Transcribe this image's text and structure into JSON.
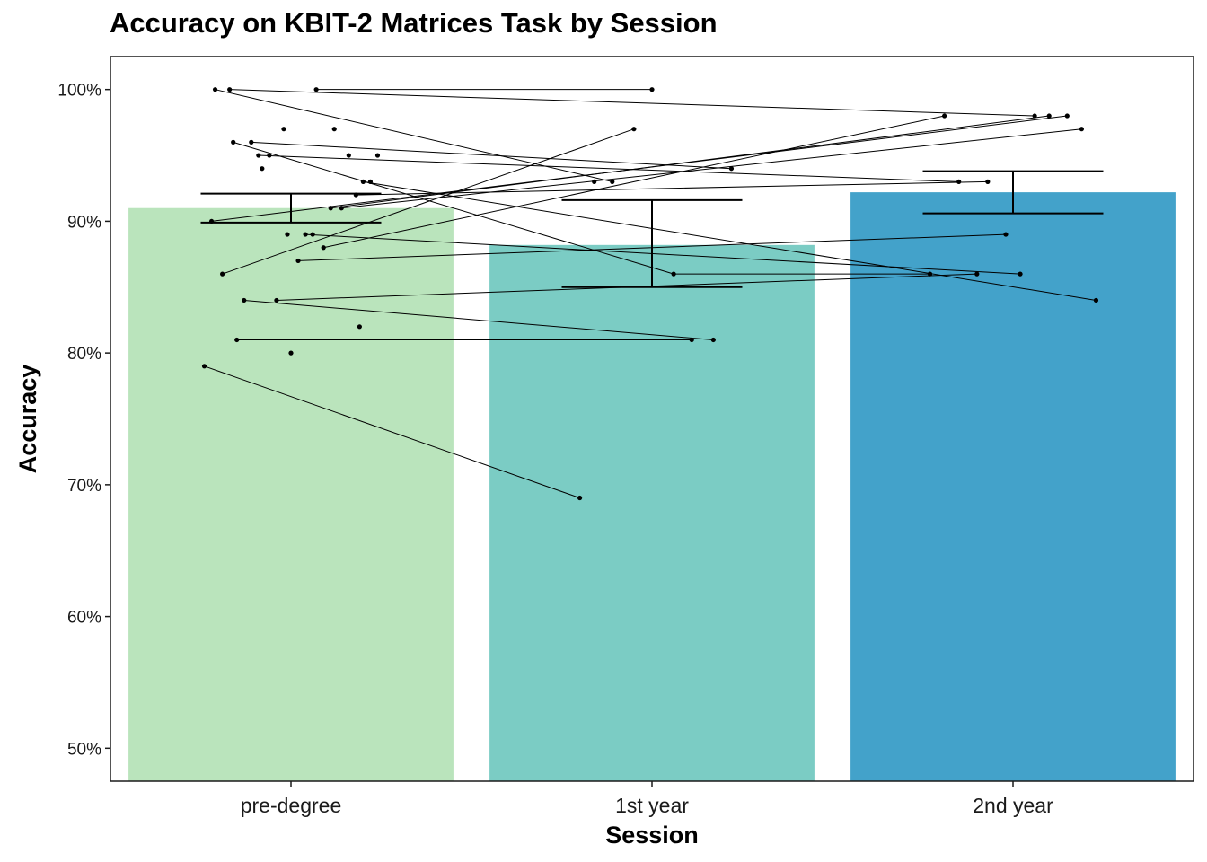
{
  "chart_data": {
    "type": "bar",
    "title": "Accuracy on KBIT-2 Matrices Task by Session",
    "xlabel": "Session",
    "ylabel": "Accuracy",
    "categories": [
      "pre-degree",
      "1st year",
      "2nd year"
    ],
    "values": [
      0.91,
      0.882,
      0.922
    ],
    "bar_colors": [
      "#bae4bc",
      "#7bccc4",
      "#43a2ca"
    ],
    "error_bars": [
      {
        "low": 0.899,
        "high": 0.921
      },
      {
        "low": 0.85,
        "high": 0.916
      },
      {
        "low": 0.906,
        "high": 0.938
      }
    ],
    "ylim": [
      0.475,
      1.025
    ],
    "y_ticks": [
      0.5,
      0.6,
      0.7,
      0.8,
      0.9,
      1.0
    ],
    "y_tick_labels": [
      "50%",
      "60%",
      "70%",
      "80%",
      "90%",
      "100%"
    ],
    "legend": "none",
    "grid": false,
    "individual_points": [
      {
        "session": "pre-degree",
        "jitter": -0.21,
        "y": 1.0
      },
      {
        "session": "pre-degree",
        "jitter": -0.17,
        "y": 1.0
      },
      {
        "session": "pre-degree",
        "jitter": 0.07,
        "y": 1.0
      },
      {
        "session": "pre-degree",
        "jitter": -0.02,
        "y": 0.97
      },
      {
        "session": "pre-degree",
        "jitter": 0.12,
        "y": 0.97
      },
      {
        "session": "pre-degree",
        "jitter": -0.16,
        "y": 0.96
      },
      {
        "session": "pre-degree",
        "jitter": -0.11,
        "y": 0.96
      },
      {
        "session": "pre-degree",
        "jitter": -0.09,
        "y": 0.95
      },
      {
        "session": "pre-degree",
        "jitter": -0.06,
        "y": 0.95
      },
      {
        "session": "pre-degree",
        "jitter": 0.16,
        "y": 0.95
      },
      {
        "session": "pre-degree",
        "jitter": 0.24,
        "y": 0.95
      },
      {
        "session": "pre-degree",
        "jitter": -0.08,
        "y": 0.94
      },
      {
        "session": "pre-degree",
        "jitter": 0.2,
        "y": 0.93
      },
      {
        "session": "pre-degree",
        "jitter": 0.22,
        "y": 0.93
      },
      {
        "session": "pre-degree",
        "jitter": 0.18,
        "y": 0.92
      },
      {
        "session": "pre-degree",
        "jitter": 0.11,
        "y": 0.91
      },
      {
        "session": "pre-degree",
        "jitter": 0.14,
        "y": 0.91
      },
      {
        "session": "pre-degree",
        "jitter": -0.22,
        "y": 0.9
      },
      {
        "session": "pre-degree",
        "jitter": -0.01,
        "y": 0.89
      },
      {
        "session": "pre-degree",
        "jitter": 0.04,
        "y": 0.89
      },
      {
        "session": "pre-degree",
        "jitter": 0.06,
        "y": 0.89
      },
      {
        "session": "pre-degree",
        "jitter": 0.09,
        "y": 0.88
      },
      {
        "session": "pre-degree",
        "jitter": 0.02,
        "y": 0.87
      },
      {
        "session": "pre-degree",
        "jitter": -0.19,
        "y": 0.86
      },
      {
        "session": "pre-degree",
        "jitter": -0.13,
        "y": 0.84
      },
      {
        "session": "pre-degree",
        "jitter": -0.04,
        "y": 0.84
      },
      {
        "session": "pre-degree",
        "jitter": 0.19,
        "y": 0.82
      },
      {
        "session": "pre-degree",
        "jitter": -0.15,
        "y": 0.81
      },
      {
        "session": "pre-degree",
        "jitter": 0.0,
        "y": 0.8
      },
      {
        "session": "pre-degree",
        "jitter": -0.24,
        "y": 0.79
      },
      {
        "session": "1st year",
        "jitter": 0.0,
        "y": 1.0
      },
      {
        "session": "1st year",
        "jitter": -0.05,
        "y": 0.97
      },
      {
        "session": "1st year",
        "jitter": -0.16,
        "y": 0.93
      },
      {
        "session": "1st year",
        "jitter": -0.11,
        "y": 0.93
      },
      {
        "session": "1st year",
        "jitter": 0.22,
        "y": 0.94
      },
      {
        "session": "1st year",
        "jitter": 0.06,
        "y": 0.86
      },
      {
        "session": "1st year",
        "jitter": 0.11,
        "y": 0.81
      },
      {
        "session": "1st year",
        "jitter": 0.17,
        "y": 0.81
      },
      {
        "session": "1st year",
        "jitter": -0.2,
        "y": 0.69
      },
      {
        "session": "2nd year",
        "jitter": -0.19,
        "y": 0.98
      },
      {
        "session": "2nd year",
        "jitter": 0.06,
        "y": 0.98
      },
      {
        "session": "2nd year",
        "jitter": 0.1,
        "y": 0.98
      },
      {
        "session": "2nd year",
        "jitter": 0.15,
        "y": 0.98
      },
      {
        "session": "2nd year",
        "jitter": 0.19,
        "y": 0.97
      },
      {
        "session": "2nd year",
        "jitter": -0.15,
        "y": 0.93
      },
      {
        "session": "2nd year",
        "jitter": -0.07,
        "y": 0.93
      },
      {
        "session": "2nd year",
        "jitter": -0.02,
        "y": 0.89
      },
      {
        "session": "2nd year",
        "jitter": -0.23,
        "y": 0.86
      },
      {
        "session": "2nd year",
        "jitter": -0.1,
        "y": 0.86
      },
      {
        "session": "2nd year",
        "jitter": 0.02,
        "y": 0.86
      },
      {
        "session": "2nd year",
        "jitter": 0.23,
        "y": 0.84
      }
    ],
    "participant_lines": [
      {
        "from": {
          "session": "pre-degree",
          "jitter": 0.07,
          "y": 1.0
        },
        "to": {
          "session": "1st year",
          "jitter": 0.0,
          "y": 1.0
        }
      },
      {
        "from": {
          "session": "pre-degree",
          "jitter": -0.17,
          "y": 1.0
        },
        "to": {
          "session": "2nd year",
          "jitter": 0.06,
          "y": 0.98
        }
      },
      {
        "from": {
          "session": "pre-degree",
          "jitter": -0.21,
          "y": 1.0
        },
        "to": {
          "session": "1st year",
          "jitter": -0.11,
          "y": 0.93
        }
      },
      {
        "from": {
          "session": "pre-degree",
          "jitter": -0.11,
          "y": 0.96
        },
        "to": {
          "session": "1st year",
          "jitter": 0.22,
          "y": 0.94
        }
      },
      {
        "from": {
          "session": "pre-degree",
          "jitter": -0.09,
          "y": 0.95
        },
        "to": {
          "session": "2nd year",
          "jitter": -0.15,
          "y": 0.93
        }
      },
      {
        "from": {
          "session": "pre-degree",
          "jitter": -0.16,
          "y": 0.96
        },
        "to": {
          "session": "1st year",
          "jitter": 0.06,
          "y": 0.86
        }
      },
      {
        "from": {
          "session": "pre-degree",
          "jitter": 0.18,
          "y": 0.92
        },
        "to": {
          "session": "2nd year",
          "jitter": -0.07,
          "y": 0.93
        }
      },
      {
        "from": {
          "session": "pre-degree",
          "jitter": -0.22,
          "y": 0.9
        },
        "to": {
          "session": "2nd year",
          "jitter": 0.15,
          "y": 0.98
        }
      },
      {
        "from": {
          "session": "pre-degree",
          "jitter": 0.11,
          "y": 0.91
        },
        "to": {
          "session": "2nd year",
          "jitter": 0.1,
          "y": 0.98
        }
      },
      {
        "from": {
          "session": "pre-degree",
          "jitter": 0.09,
          "y": 0.88
        },
        "to": {
          "session": "2nd year",
          "jitter": -0.19,
          "y": 0.98
        }
      },
      {
        "from": {
          "session": "pre-degree",
          "jitter": -0.19,
          "y": 0.86
        },
        "to": {
          "session": "1st year",
          "jitter": -0.05,
          "y": 0.97
        }
      },
      {
        "from": {
          "session": "pre-degree",
          "jitter": 0.14,
          "y": 0.91
        },
        "to": {
          "session": "2nd year",
          "jitter": 0.19,
          "y": 0.97
        }
      },
      {
        "from": {
          "session": "pre-degree",
          "jitter": 0.04,
          "y": 0.89
        },
        "to": {
          "session": "2nd year",
          "jitter": 0.02,
          "y": 0.86
        }
      },
      {
        "from": {
          "session": "pre-degree",
          "jitter": 0.02,
          "y": 0.87
        },
        "to": {
          "session": "2nd year",
          "jitter": -0.02,
          "y": 0.89
        }
      },
      {
        "from": {
          "session": "pre-degree",
          "jitter": 0.2,
          "y": 0.93
        },
        "to": {
          "session": "2nd year",
          "jitter": 0.23,
          "y": 0.84
        }
      },
      {
        "from": {
          "session": "pre-degree",
          "jitter": -0.04,
          "y": 0.84
        },
        "to": {
          "session": "2nd year",
          "jitter": -0.1,
          "y": 0.86
        }
      },
      {
        "from": {
          "session": "1st year",
          "jitter": 0.06,
          "y": 0.86
        },
        "to": {
          "session": "2nd year",
          "jitter": -0.23,
          "y": 0.86
        }
      },
      {
        "from": {
          "session": "pre-degree",
          "jitter": -0.13,
          "y": 0.84
        },
        "to": {
          "session": "1st year",
          "jitter": 0.17,
          "y": 0.81
        }
      },
      {
        "from": {
          "session": "pre-degree",
          "jitter": -0.15,
          "y": 0.81
        },
        "to": {
          "session": "1st year",
          "jitter": 0.11,
          "y": 0.81
        }
      },
      {
        "from": {
          "session": "pre-degree",
          "jitter": -0.24,
          "y": 0.79
        },
        "to": {
          "session": "1st year",
          "jitter": -0.2,
          "y": 0.69
        }
      }
    ]
  }
}
